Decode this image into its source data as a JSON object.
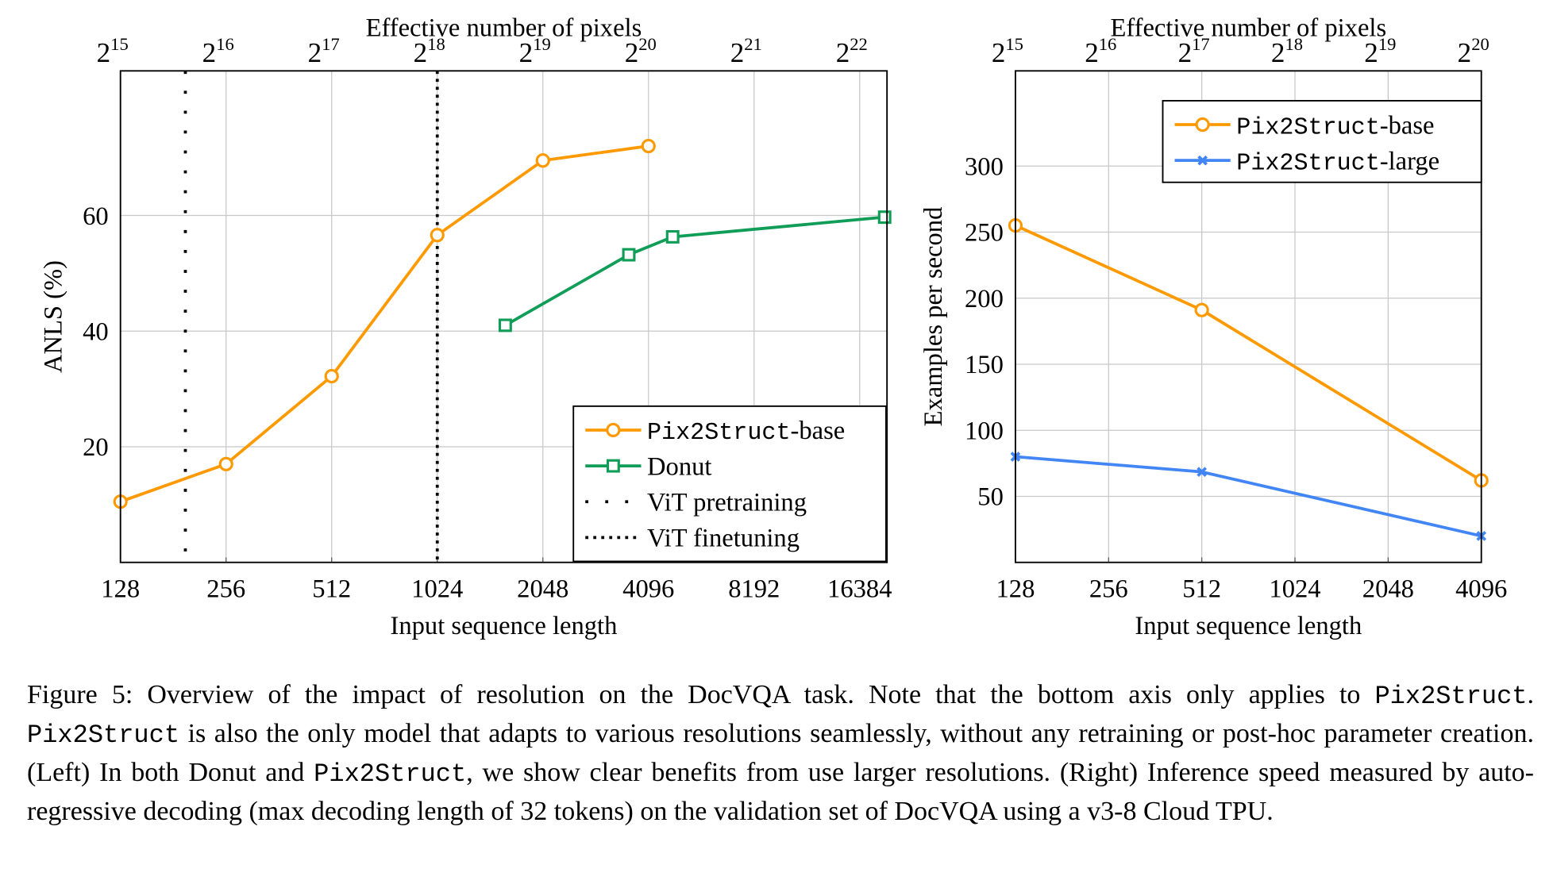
{
  "chart_data": [
    {
      "type": "line",
      "top_axis_label": "Effective number of pixels",
      "top_ticks": [
        {
          "base": "2",
          "exp": "15"
        },
        {
          "base": "2",
          "exp": "16"
        },
        {
          "base": "2",
          "exp": "17"
        },
        {
          "base": "2",
          "exp": "18"
        },
        {
          "base": "2",
          "exp": "19"
        },
        {
          "base": "2",
          "exp": "20"
        },
        {
          "base": "2",
          "exp": "21"
        },
        {
          "base": "2",
          "exp": "22"
        }
      ],
      "xlabel": "Input sequence length",
      "ylabel": "ANLS (%)",
      "xscale": "log2",
      "xlim": [
        128,
        19600
      ],
      "ylim": [
        0,
        85
      ],
      "xticks": [
        128,
        256,
        512,
        1024,
        2048,
        4096,
        8192,
        16384
      ],
      "yticks": [
        20,
        40,
        60
      ],
      "grid": true,
      "legend_position": "bottom-right",
      "series": [
        {
          "name": "Pix2Struct",
          "name_suffix": "-base",
          "color": "#ff9900",
          "marker": "circle",
          "x": [
            128,
            256,
            512,
            1024,
            2048,
            4096
          ],
          "y": [
            10.5,
            17,
            32.2,
            56.6,
            69.5,
            72
          ]
        },
        {
          "name": "Donut",
          "name_suffix": "",
          "color": "#0f9d58",
          "marker": "square",
          "x": [
            1600,
            3600,
            4800,
            19300
          ],
          "y": [
            41,
            53.2,
            56.3,
            59.7
          ]
        }
      ],
      "vlines": [
        {
          "name": "ViT pretraining",
          "x": 196,
          "style": "loosely-dotted",
          "color": "#000000"
        },
        {
          "name": "ViT finetuning",
          "x": 1024,
          "style": "dotted",
          "color": "#000000"
        }
      ]
    },
    {
      "type": "line",
      "top_axis_label": "Effective number of pixels",
      "top_ticks": [
        {
          "base": "2",
          "exp": "15"
        },
        {
          "base": "2",
          "exp": "16"
        },
        {
          "base": "2",
          "exp": "17"
        },
        {
          "base": "2",
          "exp": "18"
        },
        {
          "base": "2",
          "exp": "19"
        },
        {
          "base": "2",
          "exp": "20"
        }
      ],
      "xlabel": "Input sequence length",
      "ylabel": "Examples per second",
      "xscale": "log2",
      "xlim": [
        128,
        4096
      ],
      "ylim": [
        0,
        372
      ],
      "xticks": [
        128,
        256,
        512,
        1024,
        2048,
        4096
      ],
      "yticks": [
        50,
        100,
        150,
        200,
        250,
        300
      ],
      "grid": true,
      "legend_position": "top-right",
      "series": [
        {
          "name": "Pix2Struct",
          "name_suffix": "-base",
          "color": "#ff9900",
          "marker": "circle",
          "x": [
            128,
            512,
            4096
          ],
          "y": [
            255,
            191,
            62
          ]
        },
        {
          "name": "Pix2Struct",
          "name_suffix": "-large",
          "color": "#4285f4",
          "marker": "x",
          "x": [
            128,
            512,
            4096
          ],
          "y": [
            80,
            68.5,
            20
          ]
        }
      ]
    }
  ],
  "caption": {
    "p1": "Figure 5:  Overview of the impact of resolution on the DocVQA task.  Note that the bottom axis only applies to ",
    "t1": "Pix2Struct",
    "p2": ". ",
    "t2": "Pix2Struct",
    "p3": " is also the only model that adapts to various resolutions seamlessly, without any retraining or post-hoc parameter creation. (Left) In both Donut and ",
    "t3": "Pix2Struct",
    "p4": ", we show clear benefits from use larger resolutions. (Right) Inference speed measured by auto-regressive decoding (max decoding length of 32 tokens) on the validation set of DocVQA using a v3-8 Cloud TPU."
  }
}
